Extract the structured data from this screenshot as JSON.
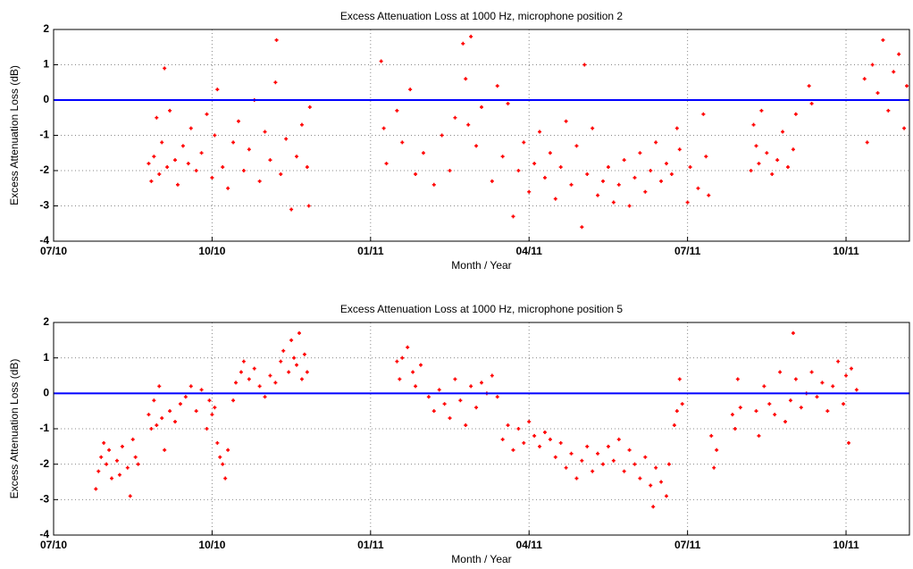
{
  "chart_data": [
    {
      "type": "scatter",
      "title": "Excess Attenuation Loss at 1000 Hz, microphone position 2",
      "x_label": "Month / Year",
      "y_label": "Excess Attenuation Loss (dB)",
      "color": "#ff0000",
      "grid": true,
      "reference_line": {
        "value": 0,
        "color": "#0000ff"
      },
      "xlim": [
        0,
        16.2
      ],
      "ylim": [
        -4,
        2
      ],
      "xticks": [
        {
          "value": 0,
          "label": "07/10"
        },
        {
          "value": 3,
          "label": "10/10"
        },
        {
          "value": 6,
          "label": "01/11"
        },
        {
          "value": 9,
          "label": "04/11"
        },
        {
          "value": 12,
          "label": "07/11"
        },
        {
          "value": 15,
          "label": "10/11"
        }
      ],
      "yticks": [
        -4,
        -3,
        -2,
        -1,
        0,
        1,
        2
      ],
      "x": [
        1.8,
        1.85,
        1.9,
        1.95,
        2.0,
        2.05,
        2.1,
        2.15,
        2.2,
        2.3,
        2.35,
        2.45,
        2.55,
        2.6,
        2.7,
        2.8,
        2.9,
        3.0,
        3.05,
        3.1,
        3.2,
        3.3,
        3.4,
        3.5,
        3.6,
        3.7,
        3.8,
        3.9,
        4.0,
        4.1,
        4.2,
        4.22,
        4.3,
        4.4,
        4.5,
        4.6,
        4.7,
        4.8,
        4.83,
        4.85,
        6.2,
        6.25,
        6.3,
        6.5,
        6.6,
        6.75,
        6.85,
        7.0,
        7.2,
        7.35,
        7.5,
        7.6,
        7.75,
        7.8,
        7.85,
        7.9,
        8.0,
        8.1,
        8.3,
        8.4,
        8.5,
        8.6,
        8.7,
        8.8,
        8.9,
        9.0,
        9.1,
        9.2,
        9.3,
        9.4,
        9.5,
        9.6,
        9.7,
        9.8,
        9.9,
        10.0,
        10.05,
        10.1,
        10.2,
        10.3,
        10.4,
        10.5,
        10.6,
        10.7,
        10.8,
        10.9,
        11.0,
        11.1,
        11.2,
        11.3,
        11.4,
        11.5,
        11.6,
        11.7,
        11.8,
        11.85,
        12.0,
        12.05,
        12.2,
        12.3,
        12.35,
        12.4,
        13.2,
        13.25,
        13.3,
        13.35,
        13.4,
        13.5,
        13.6,
        13.7,
        13.8,
        13.9,
        14.0,
        14.05,
        14.3,
        14.35,
        15.35,
        15.4,
        15.5,
        15.6,
        15.7,
        15.8,
        15.9,
        16.0,
        16.1,
        16.15
      ],
      "values": [
        -1.8,
        -2.3,
        -1.6,
        -0.5,
        -2.1,
        -1.2,
        0.9,
        -1.9,
        -0.3,
        -1.7,
        -2.4,
        -1.3,
        -1.8,
        -0.8,
        -2.0,
        -1.5,
        -0.4,
        -2.2,
        -1.0,
        0.3,
        -1.9,
        -2.5,
        -1.2,
        -0.6,
        -2.0,
        -1.4,
        0.0,
        -2.3,
        -0.9,
        -1.7,
        0.5,
        1.7,
        -2.1,
        -1.1,
        -3.1,
        -1.6,
        -0.7,
        -1.9,
        -3.0,
        -0.2,
        1.1,
        -0.8,
        -1.8,
        -0.3,
        -1.2,
        0.3,
        -2.1,
        -1.5,
        -2.4,
        -1.0,
        -2.0,
        -0.5,
        1.6,
        0.6,
        -0.7,
        1.8,
        -1.3,
        -0.2,
        -2.3,
        0.4,
        -1.6,
        -0.1,
        -3.3,
        -2.0,
        -1.2,
        -2.6,
        -1.8,
        -0.9,
        -2.2,
        -1.5,
        -2.8,
        -1.9,
        -0.6,
        -2.4,
        -1.3,
        -3.6,
        1.0,
        -2.1,
        -0.8,
        -2.7,
        -2.3,
        -1.9,
        -2.9,
        -2.4,
        -1.7,
        -3.0,
        -2.2,
        -1.5,
        -2.6,
        -2.0,
        -1.2,
        -2.3,
        -1.8,
        -2.1,
        -0.8,
        -1.4,
        -2.9,
        -1.9,
        -2.5,
        -0.4,
        -1.6,
        -2.7,
        -2.0,
        -0.7,
        -1.3,
        -1.8,
        -0.3,
        -1.5,
        -2.1,
        -1.7,
        -0.9,
        -1.9,
        -1.4,
        -0.4,
        0.4,
        -0.1,
        0.6,
        -1.2,
        1.0,
        0.2,
        1.7,
        -0.3,
        0.8,
        1.3,
        -0.8,
        0.4
      ]
    },
    {
      "type": "scatter",
      "title": "Excess Attenuation Loss at 1000 Hz, microphone position 5",
      "x_label": "Month / Year",
      "y_label": "Excess Attenuation Loss (dB)",
      "color": "#ff0000",
      "grid": true,
      "reference_line": {
        "value": 0,
        "color": "#0000ff"
      },
      "xlim": [
        0,
        16.2
      ],
      "ylim": [
        -4,
        2
      ],
      "xticks": [
        {
          "value": 0,
          "label": "07/10"
        },
        {
          "value": 3,
          "label": "10/10"
        },
        {
          "value": 6,
          "label": "01/11"
        },
        {
          "value": 9,
          "label": "04/11"
        },
        {
          "value": 12,
          "label": "07/11"
        },
        {
          "value": 15,
          "label": "10/11"
        }
      ],
      "yticks": [
        -4,
        -3,
        -2,
        -1,
        0,
        1,
        2
      ],
      "x": [
        0.8,
        0.85,
        0.9,
        0.95,
        1.0,
        1.05,
        1.1,
        1.2,
        1.25,
        1.3,
        1.4,
        1.45,
        1.5,
        1.55,
        1.6,
        1.8,
        1.85,
        1.9,
        1.95,
        2.0,
        2.05,
        2.1,
        2.2,
        2.3,
        2.4,
        2.5,
        2.6,
        2.7,
        2.8,
        2.9,
        2.95,
        3.0,
        3.05,
        3.1,
        3.15,
        3.2,
        3.25,
        3.3,
        3.4,
        3.45,
        3.55,
        3.6,
        3.7,
        3.8,
        3.9,
        4.0,
        4.1,
        4.2,
        4.3,
        4.35,
        4.45,
        4.5,
        4.55,
        4.6,
        4.65,
        4.7,
        4.75,
        4.8,
        6.5,
        6.55,
        6.6,
        6.7,
        6.8,
        6.85,
        6.95,
        7.1,
        7.2,
        7.3,
        7.4,
        7.5,
        7.6,
        7.7,
        7.8,
        7.9,
        8.0,
        8.1,
        8.2,
        8.3,
        8.4,
        8.5,
        8.6,
        8.7,
        8.8,
        8.9,
        9.0,
        9.1,
        9.2,
        9.3,
        9.4,
        9.5,
        9.6,
        9.7,
        9.8,
        9.9,
        10.0,
        10.1,
        10.2,
        10.3,
        10.4,
        10.5,
        10.6,
        10.7,
        10.8,
        10.9,
        11.0,
        11.1,
        11.2,
        11.3,
        11.35,
        11.4,
        11.5,
        11.6,
        11.65,
        11.75,
        11.8,
        11.85,
        11.9,
        12.45,
        12.5,
        12.55,
        12.85,
        12.9,
        12.95,
        13.0,
        13.3,
        13.35,
        13.45,
        13.55,
        13.65,
        13.75,
        13.85,
        13.95,
        14.0,
        14.05,
        14.15,
        14.25,
        14.35,
        14.45,
        14.55,
        14.65,
        14.75,
        14.85,
        14.95,
        15.0,
        15.05,
        15.1,
        15.2
      ],
      "values": [
        -2.7,
        -2.2,
        -1.8,
        -1.4,
        -2.0,
        -1.6,
        -2.4,
        -1.9,
        -2.3,
        -1.5,
        -2.1,
        -2.9,
        -1.3,
        -1.8,
        -2.0,
        -0.6,
        -1.0,
        -0.2,
        -0.9,
        0.2,
        -0.7,
        -1.6,
        -0.5,
        -0.8,
        -0.3,
        -0.1,
        0.2,
        -0.5,
        0.1,
        -1.0,
        -0.2,
        -0.6,
        -0.4,
        -1.4,
        -1.8,
        -2.0,
        -2.4,
        -1.6,
        -0.2,
        0.3,
        0.6,
        0.9,
        0.4,
        0.7,
        0.2,
        -0.1,
        0.5,
        0.3,
        0.9,
        1.2,
        0.6,
        1.5,
        1.0,
        0.8,
        1.7,
        0.4,
        1.1,
        0.6,
        0.9,
        0.4,
        1.0,
        1.3,
        0.6,
        0.2,
        0.8,
        -0.1,
        -0.5,
        0.1,
        -0.3,
        -0.7,
        0.4,
        -0.2,
        -0.9,
        0.2,
        -0.4,
        0.3,
        0.0,
        0.5,
        -0.1,
        -1.3,
        -0.9,
        -1.6,
        -1.0,
        -1.4,
        -0.8,
        -1.2,
        -1.5,
        -1.1,
        -1.3,
        -1.8,
        -1.4,
        -2.1,
        -1.7,
        -2.4,
        -1.9,
        -1.5,
        -2.2,
        -1.7,
        -2.0,
        -1.5,
        -1.9,
        -1.3,
        -2.2,
        -1.6,
        -2.0,
        -2.4,
        -1.8,
        -2.6,
        -3.2,
        -2.1,
        -2.5,
        -2.9,
        -2.0,
        -0.9,
        -0.5,
        0.4,
        -0.3,
        -1.2,
        -2.1,
        -1.6,
        -0.6,
        -1.0,
        0.4,
        -0.4,
        -0.5,
        -1.2,
        0.2,
        -0.3,
        -0.6,
        0.6,
        -0.8,
        -0.2,
        1.7,
        0.4,
        -0.4,
        0.0,
        0.6,
        -0.1,
        0.3,
        -0.5,
        0.2,
        0.9,
        -0.3,
        0.5,
        -1.4,
        0.7,
        0.1
      ]
    }
  ]
}
